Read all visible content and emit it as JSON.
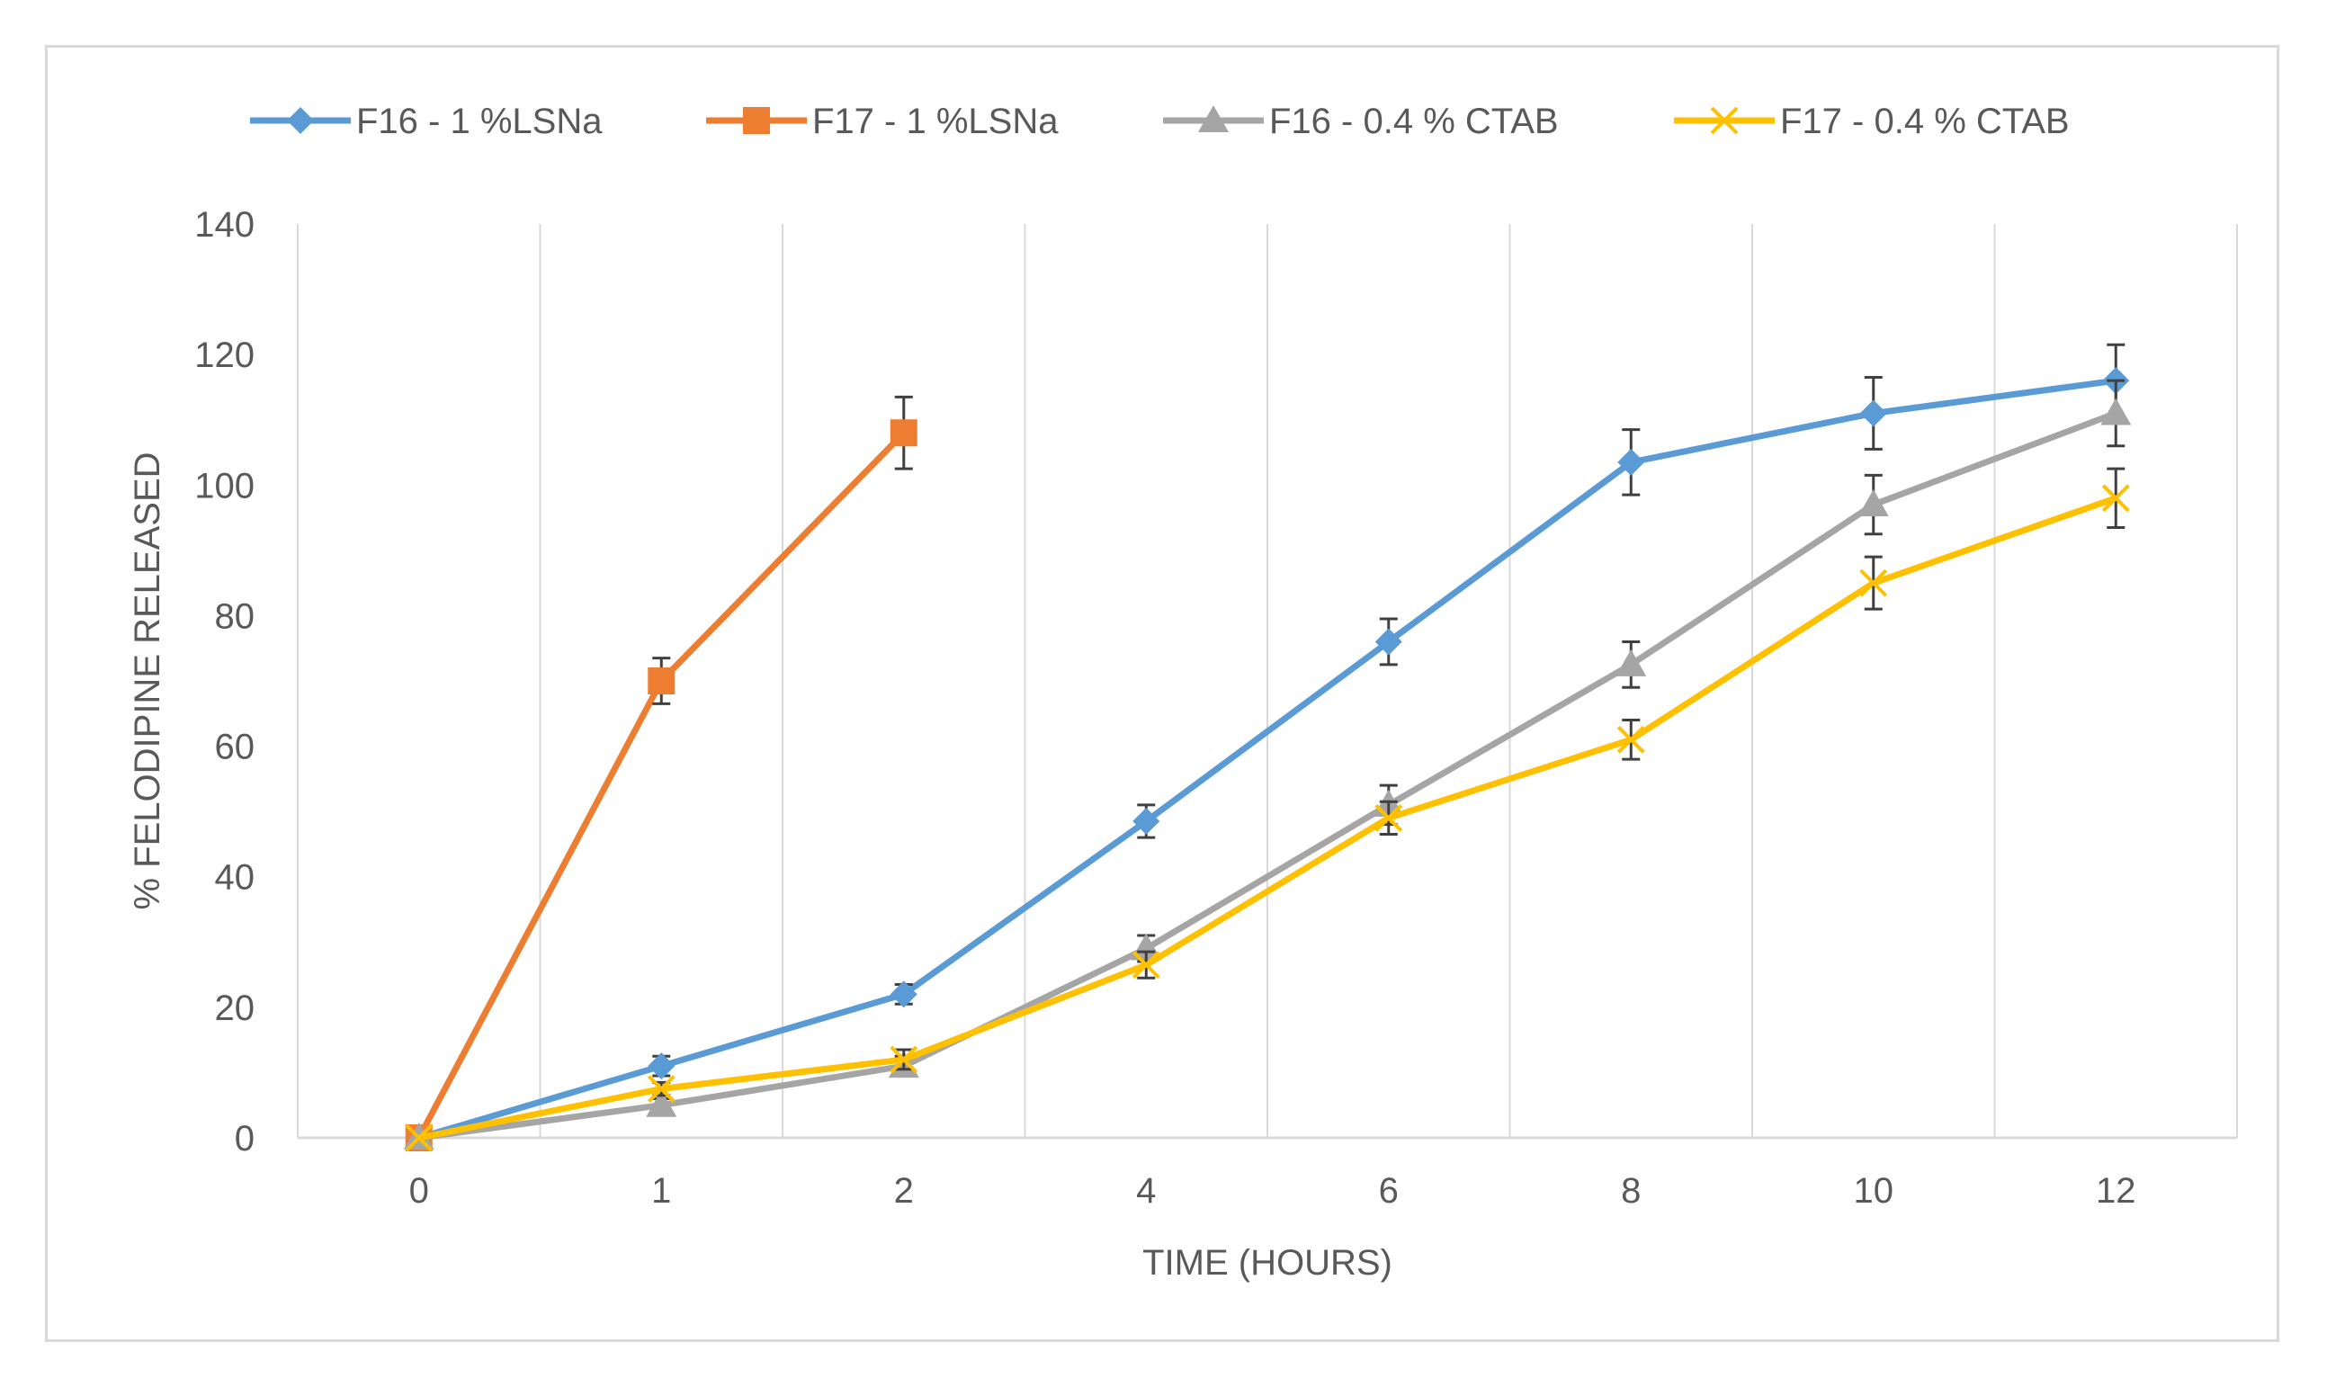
{
  "chart_data": {
    "type": "line",
    "title": "",
    "xlabel": "TIME (HOURS)",
    "ylabel": "% FELODIPINE RELEASED",
    "categories": [
      "0",
      "1",
      "2",
      "4",
      "6",
      "8",
      "10",
      "12"
    ],
    "ylim": [
      0,
      140
    ],
    "yticks": [
      0,
      20,
      40,
      60,
      80,
      100,
      120,
      140
    ],
    "grid": "vertical",
    "legend_position": "top",
    "series": [
      {
        "name": "F16 - 1 %LSNa",
        "color": "#5b9bd5",
        "marker": "diamond",
        "values": [
          0,
          11,
          22,
          48.5,
          76,
          103.5,
          111,
          116
        ],
        "errors": [
          0,
          1.5,
          1.5,
          2.5,
          3.5,
          5,
          5.5,
          5.5
        ]
      },
      {
        "name": "F17 - 1 %LSNa",
        "color": "#ed7d31",
        "marker": "square",
        "values": [
          0,
          70,
          108,
          null,
          null,
          null,
          null,
          null
        ],
        "errors": [
          0,
          3.5,
          5.5,
          null,
          null,
          null,
          null,
          null
        ]
      },
      {
        "name": "F16 - 0.4 % CTAB",
        "color": "#a5a5a5",
        "marker": "triangle",
        "values": [
          0,
          5,
          11,
          29,
          51,
          72.5,
          97,
          111
        ],
        "errors": [
          0,
          1,
          1.5,
          2,
          3,
          3.5,
          4.5,
          5
        ]
      },
      {
        "name": "F17 - 0.4 % CTAB",
        "color": "#ffc000",
        "marker": "x",
        "values": [
          0,
          7.5,
          12,
          26.5,
          49,
          61,
          85,
          98
        ],
        "errors": [
          0,
          1,
          1.5,
          2,
          2.5,
          3,
          4,
          4.5
        ]
      }
    ]
  }
}
